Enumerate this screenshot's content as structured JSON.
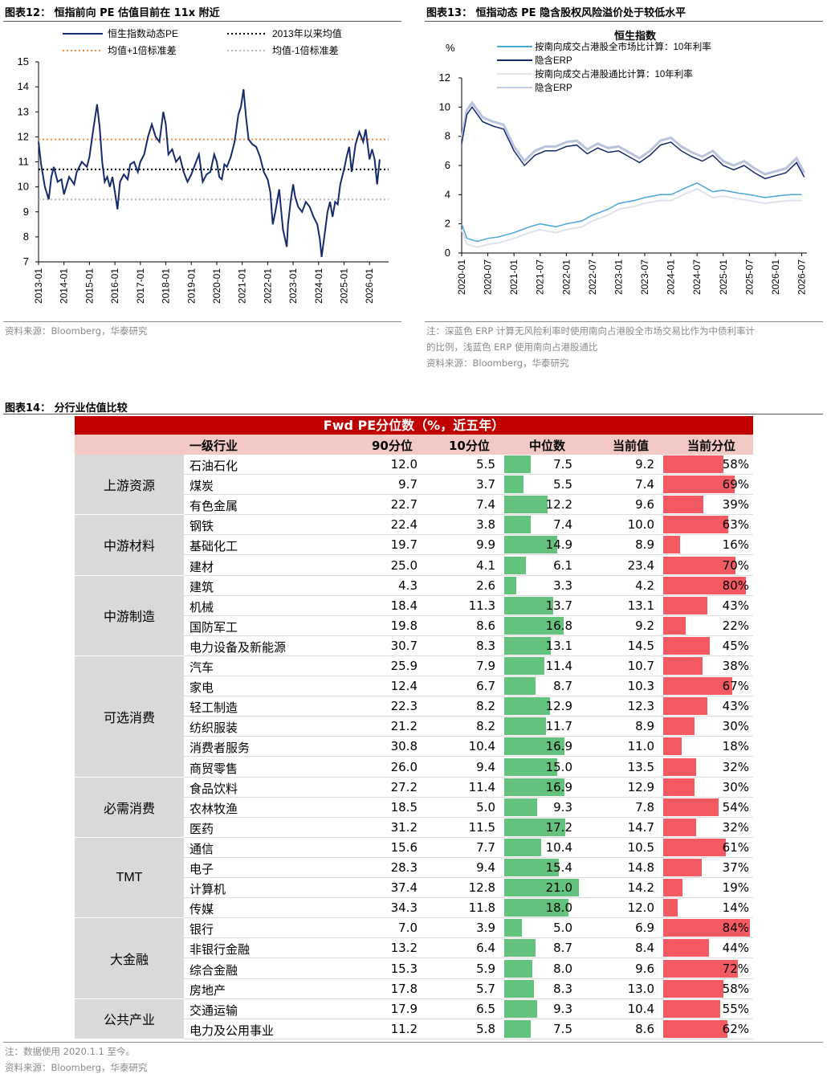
{
  "fig12": {
    "title": "图表12： 恒指前向 PE 估值目前在 11x 附近",
    "source": "资料来源：Bloomberg，华泰研究",
    "chart_data": {
      "type": "line",
      "ylim": [
        7,
        15
      ],
      "yticks": [
        "15",
        "14",
        "13",
        "12",
        "11",
        "10",
        "9",
        "8",
        "7"
      ],
      "xticks": [
        "2013-01",
        "2014-01",
        "2015-01",
        "2016-01",
        "2017-01",
        "2018-01",
        "2019-01",
        "2020-01",
        "2021-01",
        "2022-01",
        "2023-01",
        "2024-01",
        "2025-01",
        "2026-01"
      ],
      "legend": [
        "恒生指数动态PE",
        "2013年以来均值",
        "均值+1倍标准差",
        "均值-1倍标准差"
      ],
      "mean": 10.7,
      "plus1sd": 11.9,
      "minus1sd": 9.5,
      "series": [
        {
          "name": "恒生指数动态PE",
          "x": [
            2013.0,
            2013.1,
            2013.25,
            2013.4,
            2013.5,
            2013.6,
            2013.75,
            2013.9,
            2014.0,
            2014.2,
            2014.4,
            2014.5,
            2014.7,
            2014.9,
            2015.0,
            2015.15,
            2015.3,
            2015.4,
            2015.5,
            2015.6,
            2015.7,
            2015.8,
            2015.9,
            2016.0,
            2016.1,
            2016.2,
            2016.35,
            2016.5,
            2016.6,
            2016.75,
            2016.9,
            2017.0,
            2017.15,
            2017.3,
            2017.45,
            2017.6,
            2017.75,
            2017.9,
            2018.0,
            2018.1,
            2018.25,
            2018.4,
            2018.55,
            2018.7,
            2018.85,
            2019.0,
            2019.15,
            2019.3,
            2019.45,
            2019.6,
            2019.75,
            2019.9,
            2020.0,
            2020.1,
            2020.2,
            2020.3,
            2020.4,
            2020.55,
            2020.7,
            2020.85,
            2020.95,
            2021.05,
            2021.15,
            2021.25,
            2021.4,
            2021.55,
            2021.7,
            2021.85,
            2022.0,
            2022.1,
            2022.2,
            2022.3,
            2022.45,
            2022.6,
            2022.75,
            2022.8,
            2022.9,
            2023.0,
            2023.08,
            2023.2,
            2023.35,
            2023.5,
            2023.65,
            2023.8,
            2023.95,
            2024.05,
            2024.12,
            2024.25,
            2024.35,
            2024.45,
            2024.55,
            2024.65,
            2024.75,
            2024.85,
            2025.0,
            2025.1,
            2025.2,
            2025.3,
            2025.45,
            2025.6,
            2025.75,
            2025.85,
            2026.0,
            2026.1,
            2026.2,
            2026.3,
            2026.4
          ],
          "values": [
            11.8,
            10.9,
            10.0,
            9.5,
            10.4,
            10.8,
            10.2,
            10.3,
            9.7,
            10.4,
            10.1,
            10.6,
            11.0,
            10.8,
            11.2,
            12.3,
            13.3,
            12.4,
            11.0,
            10.2,
            10.4,
            10.0,
            10.4,
            9.8,
            9.1,
            10.2,
            10.5,
            10.3,
            10.9,
            11.0,
            10.6,
            11.0,
            11.3,
            12.0,
            12.5,
            12.0,
            11.8,
            13.0,
            12.5,
            11.3,
            11.5,
            11.0,
            11.2,
            10.6,
            10.2,
            10.5,
            10.9,
            11.3,
            10.2,
            10.5,
            10.6,
            11.3,
            11.0,
            10.4,
            10.3,
            10.9,
            10.8,
            11.2,
            11.8,
            12.9,
            13.2,
            13.9,
            12.8,
            11.9,
            11.7,
            11.6,
            11.2,
            10.6,
            10.3,
            9.8,
            8.5,
            9.0,
            9.9,
            8.3,
            7.6,
            8.5,
            9.4,
            10.1,
            9.6,
            9.2,
            9.0,
            9.4,
            9.2,
            8.8,
            8.5,
            7.9,
            7.2,
            8.2,
            9.0,
            9.4,
            8.8,
            9.4,
            9.3,
            10.1,
            10.7,
            11.2,
            11.6,
            10.6,
            11.7,
            12.2,
            11.8,
            12.3,
            11.1,
            11.5,
            11.1,
            10.1,
            11.1
          ]
        }
      ]
    }
  },
  "fig13": {
    "title": "图表13： 恒指动态 PE 隐含股权风险溢价处于较低水平",
    "note1": "注：深蓝色 ERP 计算无风险利率时使用南向占港股全市场交易比作为中债利率计",
    "note2": "的比例，浅蓝色 ERP 使用南向占港股通比",
    "source": "资料来源：Bloomberg，华泰研究",
    "chart_data": {
      "type": "line",
      "title": "恒生指数",
      "ylabel": "%",
      "ylim": [
        0,
        12
      ],
      "yticks": [
        "12",
        "10",
        "8",
        "6",
        "4",
        "2",
        "0"
      ],
      "xticks": [
        "2020-01",
        "2020-07",
        "2021-01",
        "2021-07",
        "2022-01",
        "2022-07",
        "2023-01",
        "2023-07",
        "2024-01",
        "2024-07",
        "2025-01",
        "2025-07",
        "2026-01",
        "2026-07"
      ],
      "legend": [
        "按南向成交占港股全市场比计算：10年利率",
        "隐含ERP",
        "按南向成交占港股通比计算：10年利率",
        "隐含ERP"
      ],
      "series": [
        {
          "name": "10年利率(全市场)",
          "x": [
            2020.0,
            2020.1,
            2020.3,
            2020.5,
            2020.7,
            2021.0,
            2021.3,
            2021.5,
            2021.8,
            2022.0,
            2022.3,
            2022.5,
            2022.8,
            2023.0,
            2023.3,
            2023.5,
            2023.8,
            2024.0,
            2024.3,
            2024.5,
            2024.8,
            2025.0,
            2025.3,
            2025.5,
            2025.8,
            2026.0,
            2026.3,
            2026.5
          ],
          "values": [
            2.0,
            1.0,
            0.8,
            1.0,
            1.1,
            1.4,
            1.8,
            2.0,
            1.8,
            2.0,
            2.2,
            2.6,
            3.0,
            3.4,
            3.6,
            3.8,
            4.0,
            4.0,
            4.5,
            4.8,
            4.2,
            4.3,
            4.1,
            4.0,
            3.8,
            3.9,
            4.0,
            4.0
          ]
        },
        {
          "name": "隐含ERP",
          "x": [
            2020.0,
            2020.1,
            2020.2,
            2020.4,
            2020.6,
            2020.8,
            2021.0,
            2021.2,
            2021.4,
            2021.6,
            2021.8,
            2022.0,
            2022.2,
            2022.4,
            2022.6,
            2022.8,
            2023.0,
            2023.2,
            2023.4,
            2023.6,
            2023.8,
            2024.0,
            2024.2,
            2024.4,
            2024.6,
            2024.8,
            2025.0,
            2025.2,
            2025.4,
            2025.6,
            2025.8,
            2026.0,
            2026.2,
            2026.4,
            2026.55
          ],
          "values": [
            7.5,
            9.5,
            10.0,
            9.0,
            8.7,
            8.5,
            7.0,
            6.0,
            6.7,
            7.0,
            7.0,
            7.3,
            7.4,
            6.8,
            7.2,
            6.9,
            7.0,
            6.6,
            6.2,
            6.7,
            7.4,
            7.6,
            7.0,
            6.6,
            6.3,
            6.7,
            6.0,
            5.7,
            6.0,
            5.5,
            5.1,
            5.3,
            5.5,
            6.2,
            5.2
          ]
        }
      ]
    }
  },
  "fig14": {
    "title": "图表14： 分行业估值比较",
    "table_title": "Fwd PE分位数（%，近五年）",
    "headers": [
      "一级行业",
      "90分位",
      "10分位",
      "中位数",
      "当前值",
      "当前分位"
    ],
    "note": "注：数据使用 2020.1.1 至今。",
    "source": "资料来源：Bloomberg，华泰研究",
    "groups": [
      {
        "name": "上游资源",
        "rows": [
          [
            "石油石化",
            "12.0",
            "5.5",
            "7.5",
            "9.2",
            "58%"
          ],
          [
            "煤炭",
            "9.7",
            "3.7",
            "5.5",
            "7.4",
            "69%"
          ],
          [
            "有色金属",
            "22.7",
            "7.4",
            "12.2",
            "9.6",
            "39%"
          ]
        ]
      },
      {
        "name": "中游材料",
        "rows": [
          [
            "钢铁",
            "22.4",
            "3.8",
            "7.4",
            "10.0",
            "63%"
          ],
          [
            "基础化工",
            "19.7",
            "9.9",
            "14.9",
            "8.9",
            "16%"
          ],
          [
            "建材",
            "25.0",
            "4.1",
            "6.1",
            "23.4",
            "70%"
          ]
        ]
      },
      {
        "name": "中游制造",
        "rows": [
          [
            "建筑",
            "4.3",
            "2.6",
            "3.3",
            "4.2",
            "80%"
          ],
          [
            "机械",
            "18.4",
            "11.3",
            "13.7",
            "13.1",
            "43%"
          ],
          [
            "国防军工",
            "19.8",
            "8.6",
            "16.8",
            "9.2",
            "22%"
          ],
          [
            "电力设备及新能源",
            "30.7",
            "8.3",
            "13.1",
            "14.5",
            "45%"
          ]
        ]
      },
      {
        "name": "可选消费",
        "rows": [
          [
            "汽车",
            "25.9",
            "7.9",
            "11.4",
            "10.7",
            "38%"
          ],
          [
            "家电",
            "12.4",
            "6.7",
            "8.7",
            "10.3",
            "67%"
          ],
          [
            "轻工制造",
            "22.3",
            "8.2",
            "12.9",
            "12.3",
            "43%"
          ],
          [
            "纺织服装",
            "21.2",
            "8.2",
            "11.7",
            "8.9",
            "30%"
          ],
          [
            "消费者服务",
            "30.8",
            "10.4",
            "16.9",
            "11.0",
            "18%"
          ],
          [
            "商贸零售",
            "26.0",
            "9.4",
            "15.0",
            "13.5",
            "32%"
          ]
        ]
      },
      {
        "name": "必需消费",
        "rows": [
          [
            "食品饮料",
            "27.2",
            "11.4",
            "16.9",
            "12.9",
            "30%"
          ],
          [
            "农林牧渔",
            "18.5",
            "5.0",
            "9.3",
            "7.8",
            "54%"
          ],
          [
            "医药",
            "31.2",
            "11.5",
            "17.2",
            "14.7",
            "32%"
          ]
        ]
      },
      {
        "name": "TMT",
        "rows": [
          [
            "通信",
            "15.6",
            "7.7",
            "10.4",
            "10.5",
            "61%"
          ],
          [
            "电子",
            "28.3",
            "9.4",
            "15.4",
            "14.8",
            "37%"
          ],
          [
            "计算机",
            "37.4",
            "12.8",
            "21.0",
            "14.2",
            "19%"
          ],
          [
            "传媒",
            "34.3",
            "11.8",
            "18.0",
            "12.0",
            "14%"
          ]
        ]
      },
      {
        "name": "大金融",
        "rows": [
          [
            "银行",
            "7.0",
            "3.9",
            "5.0",
            "6.9",
            "84%"
          ],
          [
            "非银行金融",
            "13.2",
            "6.4",
            "8.7",
            "8.4",
            "44%"
          ],
          [
            "综合金融",
            "15.3",
            "5.9",
            "8.0",
            "9.6",
            "72%"
          ],
          [
            "房地产",
            "17.8",
            "5.7",
            "8.3",
            "13.0",
            "58%"
          ]
        ]
      },
      {
        "name": "公共产业",
        "rows": [
          [
            "交通运输",
            "17.9",
            "6.5",
            "9.3",
            "10.4",
            "55%"
          ],
          [
            "电力及公用事业",
            "11.2",
            "5.8",
            "7.5",
            "8.6",
            "62%"
          ]
        ]
      }
    ]
  }
}
